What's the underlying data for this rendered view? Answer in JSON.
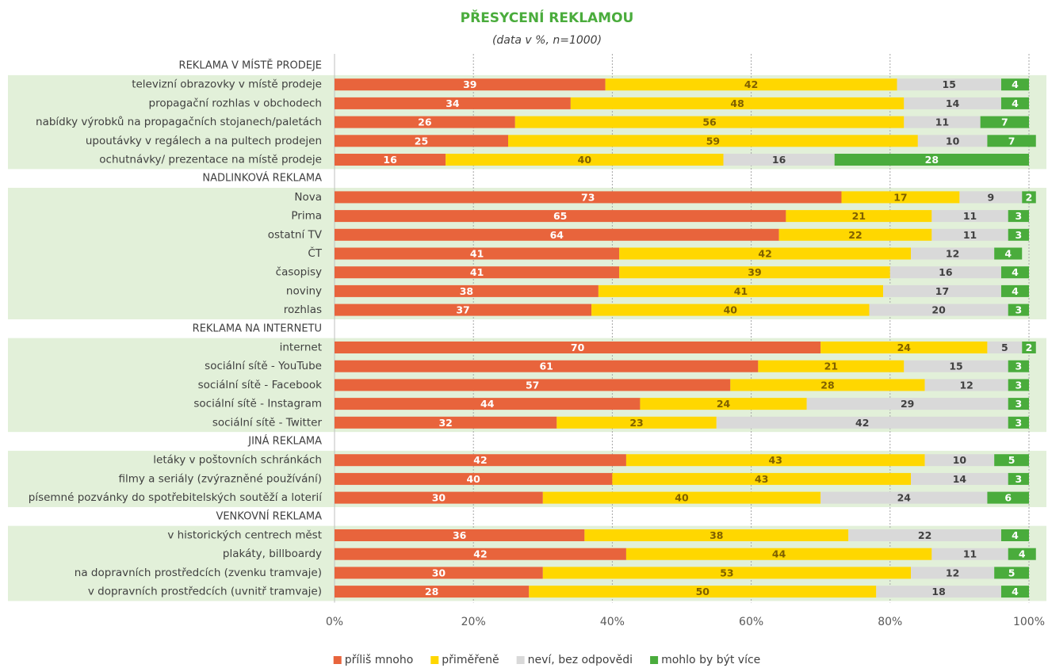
{
  "chart_data": {
    "type": "stacked-bar-horizontal",
    "title": "PŘESYCENÍ REKLAMOU",
    "subtitle": "(data v %, n=1000)",
    "categories": [
      "REKLAMA V MÍSTĚ PRODEJE",
      "televizní obrazovky v místě prodeje",
      "propagační rozhlas v obchodech",
      "nabídky výrobků na propagačních stojanech/paletách",
      "upoutávky v regálech a na pultech prodejen",
      "ochutnávky/ prezentace na místě prodeje",
      "NADLINKOVÁ REKLAMA",
      "Nova",
      "Prima",
      "ostatní TV",
      "ČT",
      "časopisy",
      "noviny",
      "rozhlas",
      "REKLAMA NA INTERNETU",
      "internet",
      "sociální sítě - YouTube",
      "sociální sítě - Facebook",
      "sociální sítě - Instagram",
      "sociální sítě - Twitter",
      "JINÁ REKLAMA",
      "letáky v poštovních schránkách",
      "filmy a seriály (zvýrazněné používání)",
      "písemné pozvánky do spotřebitelských soutěží a loterií",
      "VENKOVNÍ REKLAMA",
      "v historických centrech měst",
      "plakáty, billboardy",
      "na dopravních prostředcích (zvenku tramvaje)",
      "v dopravních prostředcích (uvnitř tramvaje)"
    ],
    "series": [
      {
        "name": "příliš mnoho",
        "color": "#e8643c",
        "values": [
          null,
          39,
          34,
          26,
          25,
          16,
          null,
          73,
          65,
          64,
          41,
          41,
          38,
          37,
          null,
          70,
          61,
          57,
          44,
          32,
          null,
          42,
          40,
          30,
          null,
          36,
          42,
          30,
          28
        ]
      },
      {
        "name": "přiměřeně",
        "color": "#ffd700",
        "values": [
          null,
          42,
          48,
          56,
          59,
          40,
          null,
          17,
          21,
          22,
          42,
          39,
          41,
          40,
          null,
          24,
          21,
          28,
          24,
          23,
          null,
          43,
          43,
          40,
          null,
          38,
          44,
          53,
          50
        ]
      },
      {
        "name": "neví, bez odpovědi",
        "color": "#d9d9d9",
        "values": [
          null,
          15,
          14,
          11,
          10,
          16,
          null,
          9,
          11,
          11,
          12,
          16,
          17,
          20,
          null,
          5,
          15,
          12,
          29,
          42,
          null,
          10,
          14,
          24,
          null,
          22,
          11,
          12,
          18
        ]
      },
      {
        "name": "mohlo by být více",
        "color": "#4aac3c",
        "values": [
          null,
          4,
          4,
          7,
          7,
          28,
          null,
          2,
          3,
          3,
          4,
          4,
          4,
          3,
          null,
          2,
          3,
          3,
          3,
          3,
          null,
          5,
          3,
          6,
          null,
          4,
          4,
          5,
          4
        ]
      }
    ],
    "xlim": [
      0,
      100
    ],
    "xticks": [
      {
        "value": 0,
        "label": "0%"
      },
      {
        "value": 20,
        "label": "20%"
      },
      {
        "value": 40,
        "label": "40%"
      },
      {
        "value": 60,
        "label": "60%"
      },
      {
        "value": 80,
        "label": "80%"
      },
      {
        "value": 100,
        "label": "100%"
      }
    ],
    "grid": true,
    "legend": "bottom"
  }
}
